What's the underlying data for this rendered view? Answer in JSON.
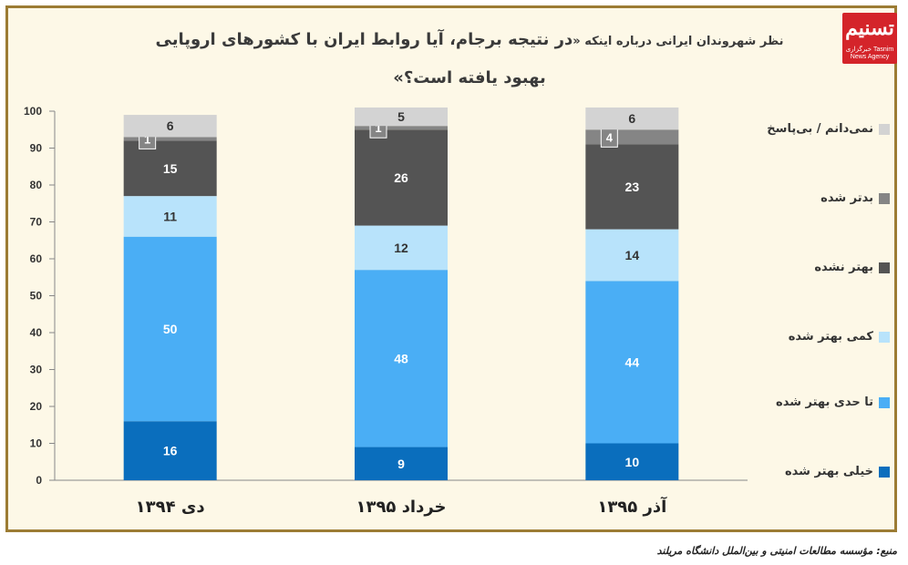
{
  "title_main": "در نتیجه برجام، آیا روابط ایران با کشورهای اروپایی بهبود یافته است؟»",
  "title_prefix": "نظر شهروندان ایرانی درباره اینکه «",
  "logo": {
    "text_big": "تسنیم",
    "text_small": "خبرگزاری Tasnim News Agency"
  },
  "source": "منبع: مؤسسه مطالعات امنیتی و بین‌الملل دانشگاه مریلند",
  "chart_data": {
    "type": "bar",
    "stacked": true,
    "categories": [
      "دی ۱۳۹۴",
      "خرداد ۱۳۹۵",
      "آذر ۱۳۹۵"
    ],
    "ylim": [
      0,
      100
    ],
    "yticks": [
      0,
      10,
      20,
      30,
      40,
      50,
      60,
      70,
      80,
      90,
      100
    ],
    "legend_position": "right",
    "series": [
      {
        "name": "خیلی بهتر شده",
        "color": "#0a6ebd",
        "values": [
          16,
          9,
          10
        ]
      },
      {
        "name": "تا حدی بهتر شده",
        "color": "#4aaef5",
        "values": [
          50,
          48,
          44
        ]
      },
      {
        "name": "کمی بهتر شده",
        "color": "#b8e3fb",
        "values": [
          11,
          12,
          14
        ]
      },
      {
        "name": "بهتر نشده",
        "color": "#545454",
        "values": [
          15,
          26,
          23
        ]
      },
      {
        "name": "بدتر شده",
        "color": "#858585",
        "values": [
          1,
          1,
          4
        ]
      },
      {
        "name": "نمی‌دانم / بی‌پاسخ",
        "color": "#d3d3d3",
        "values": [
          6,
          5,
          6
        ]
      }
    ]
  }
}
